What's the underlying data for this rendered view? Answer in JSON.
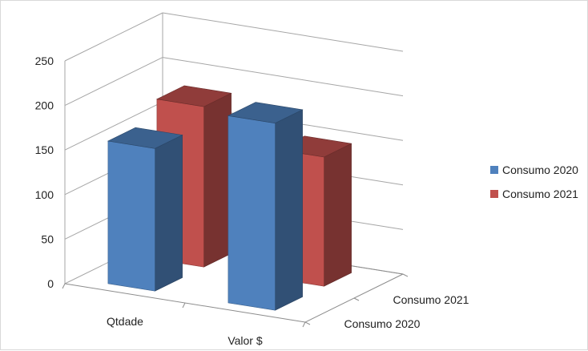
{
  "chart_data": {
    "type": "bar",
    "categories": [
      "Qtdade",
      "Valor $"
    ],
    "series": [
      {
        "name": "Consumo 2020",
        "values": [
          160,
          210
        ],
        "color": "#4F81BD"
      },
      {
        "name": "Consumo 2021",
        "values": [
          180,
          145
        ],
        "color": "#C0504D"
      }
    ],
    "depth_axis_labels": [
      "Consumo 2020",
      "Consumo 2021"
    ],
    "ylim": [
      0,
      250
    ],
    "y_ticks": [
      0,
      50,
      100,
      150,
      200,
      250
    ],
    "grid": true,
    "legend_position": "right",
    "style": "3d-column"
  }
}
